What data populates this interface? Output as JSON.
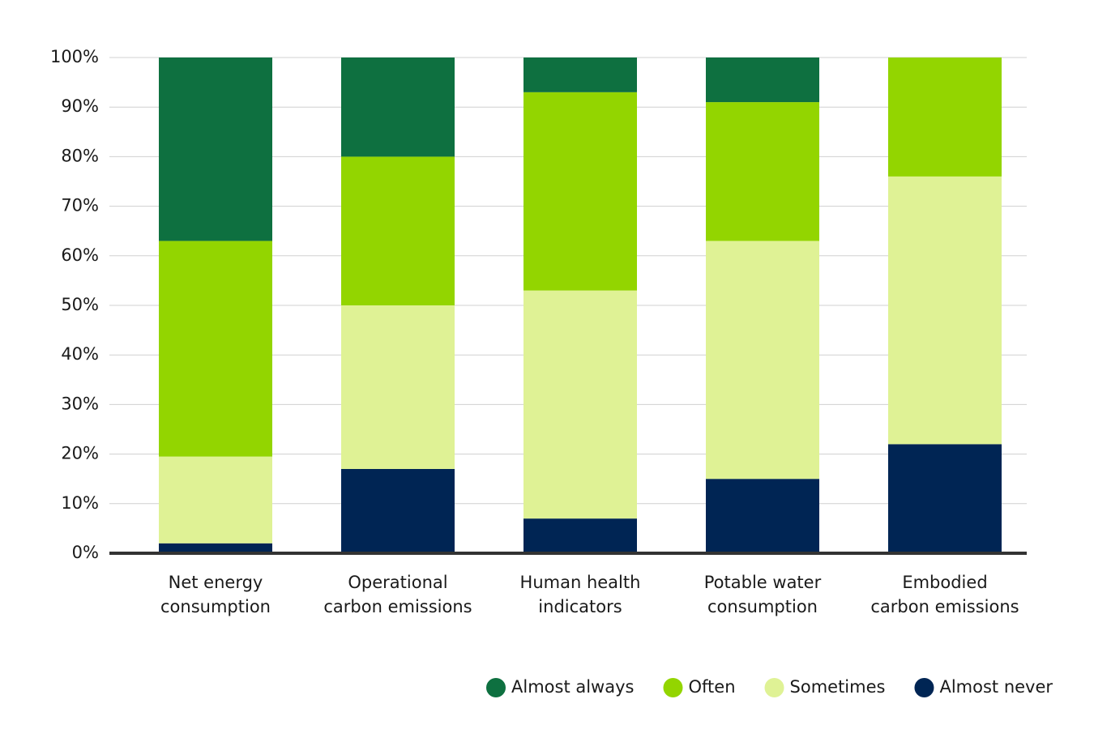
{
  "chart_data": {
    "type": "stacked_bar",
    "categories": [
      [
        "Net energy",
        "consumption"
      ],
      [
        "Operational",
        "carbon emissions"
      ],
      [
        "Human health",
        "indicators"
      ],
      [
        "Potable water",
        "consumption"
      ],
      [
        "Embodied",
        "carbon emissions"
      ]
    ],
    "series": [
      {
        "name": "Almost always",
        "color": "#0e7040",
        "values": [
          37,
          20,
          7,
          9,
          0
        ]
      },
      {
        "name": "Often",
        "color": "#93d500",
        "values": [
          43.5,
          30,
          40,
          28,
          24
        ]
      },
      {
        "name": "Sometimes",
        "color": "#dff295",
        "values": [
          17.5,
          33,
          46,
          48,
          54
        ]
      },
      {
        "name": "Almost never",
        "color": "#002554",
        "values": [
          2,
          17,
          7,
          15,
          22
        ]
      }
    ],
    "ylim": [
      0,
      100
    ],
    "yticks": [
      {
        "value": 0,
        "label": "0%"
      },
      {
        "value": 10,
        "label": "10%"
      },
      {
        "value": 20,
        "label": "20%"
      },
      {
        "value": 30,
        "label": "30%"
      },
      {
        "value": 40,
        "label": "40%"
      },
      {
        "value": 50,
        "label": "50%"
      },
      {
        "value": 60,
        "label": "60%"
      },
      {
        "value": 70,
        "label": "70%"
      },
      {
        "value": 80,
        "label": "80%"
      },
      {
        "value": 90,
        "label": "90%"
      },
      {
        "value": 100,
        "label": "100%"
      }
    ],
    "grid": true
  }
}
